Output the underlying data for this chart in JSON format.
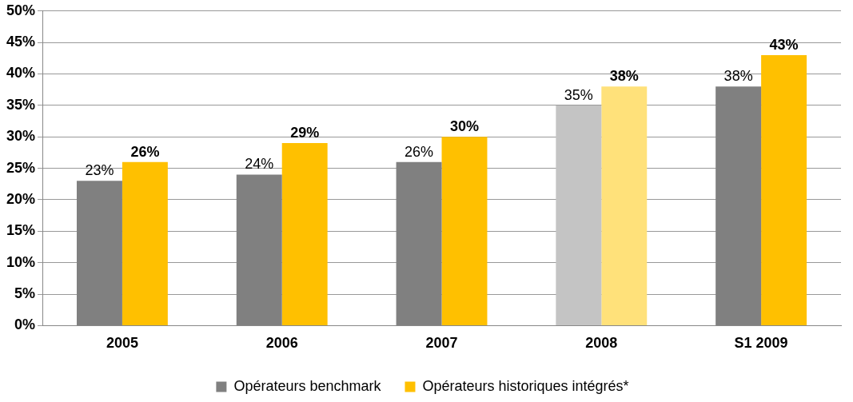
{
  "chart_data": {
    "type": "bar",
    "categories": [
      "2005",
      "2006",
      "2007",
      "2008",
      "S1 2009"
    ],
    "series": [
      {
        "name": "Opérateurs benchmark",
        "color": "#808080",
        "colors": [
          "#808080",
          "#808080",
          "#808080",
          "#c4c4c4",
          "#808080"
        ],
        "values": [
          23,
          24,
          26,
          35,
          38
        ],
        "value_labels": [
          "23%",
          "24%",
          "26%",
          "35%",
          "38%"
        ]
      },
      {
        "name": "Opérateurs historiques intégrés*",
        "color": "#ffc000",
        "colors": [
          "#ffc000",
          "#ffc000",
          "#ffc000",
          "#ffe17a",
          "#ffc000"
        ],
        "values": [
          26,
          29,
          30,
          38,
          43
        ],
        "value_labels": [
          "26%",
          "29%",
          "30%",
          "38%",
          "43%"
        ]
      }
    ],
    "ylim": [
      0,
      50
    ],
    "yticks": [
      {
        "value": 0,
        "label": "0%"
      },
      {
        "value": 5,
        "label": "5%"
      },
      {
        "value": 10,
        "label": "10%"
      },
      {
        "value": 15,
        "label": "15%"
      },
      {
        "value": 20,
        "label": "20%"
      },
      {
        "value": 25,
        "label": "25%"
      },
      {
        "value": 30,
        "label": "30%"
      },
      {
        "value": 35,
        "label": "35%"
      },
      {
        "value": 40,
        "label": "40%"
      },
      {
        "value": 45,
        "label": "45%"
      },
      {
        "value": 50,
        "label": "50%"
      }
    ],
    "grid": "y",
    "legend": "bottom"
  }
}
